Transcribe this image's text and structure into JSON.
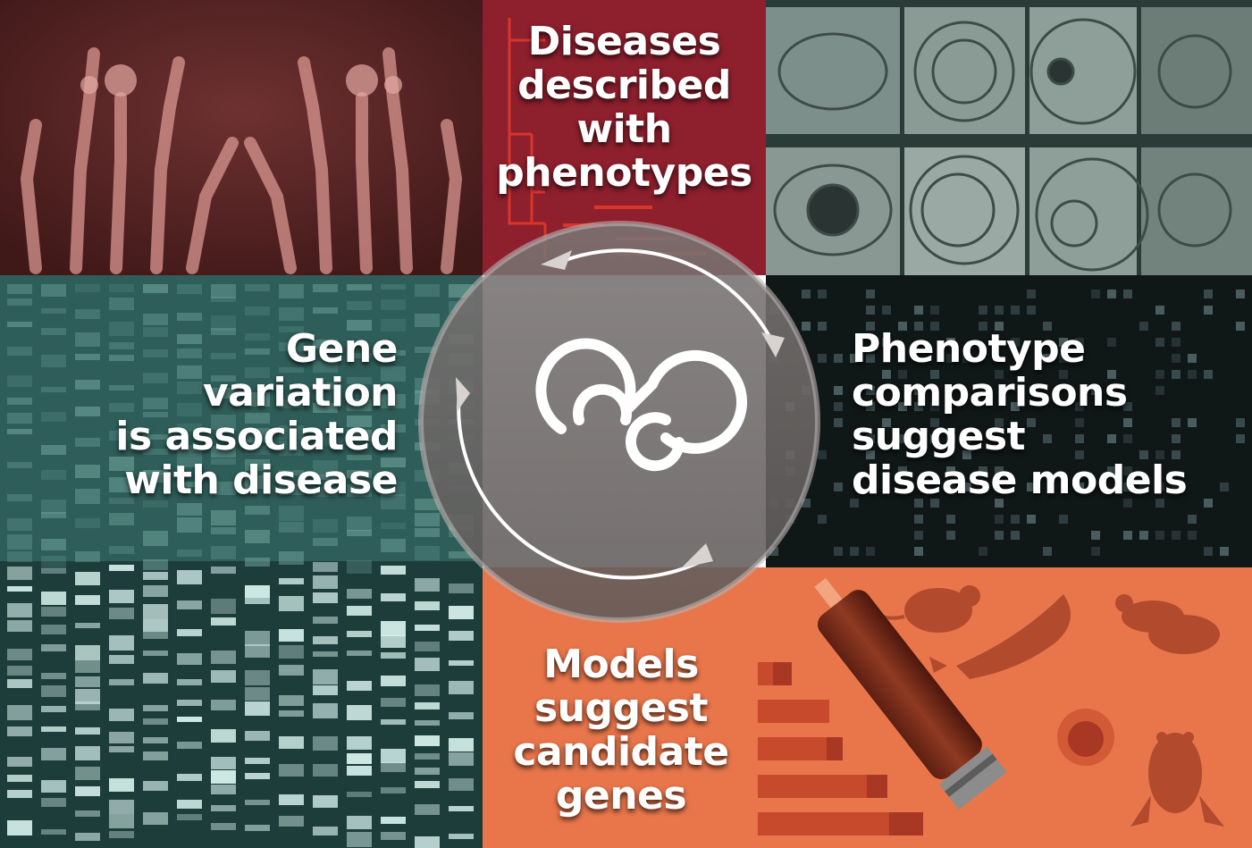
{
  "labels": {
    "top": "Diseases\ndescribed\nwith\nphenotypes",
    "left": "Gene\nvariation\nis associated\nwith disease",
    "right": "Phenotype\ncomparisons\nsuggest\ndisease models",
    "bottom": "Models\nsuggest\ncandidate\ngenes"
  },
  "colors": {
    "xray_bg": "#5a2424",
    "disease_red": "#8d1f2c",
    "eye_bg": "#5f6f6a",
    "gel_teal": "#3c6e69",
    "dark_matrix": "#0f1616",
    "model_orange": "#e8744a",
    "lens_grey": "#6e6a69",
    "handle_brown": "#7a2a1a"
  },
  "icons": {
    "center": "infinity-loop-icon",
    "tool": "magnifying-glass-icon",
    "animals": [
      "mouse-icon",
      "zebrafish-icon",
      "fruit-fly-icon",
      "cell-icon",
      "frog-icon"
    ]
  }
}
